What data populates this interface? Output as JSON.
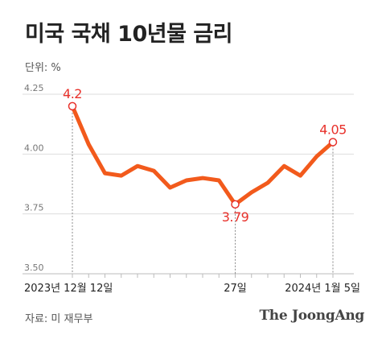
{
  "title": "미국 국채 10년물 금리",
  "unit_label": "단위: %",
  "source": "자료: 미 재무부",
  "brand": "The JoongAng",
  "colors": {
    "line": "#f25a1c",
    "highlight": "#e8312b",
    "grid": "#dddddd",
    "axis": "#bbbbbb"
  },
  "chart_data": {
    "type": "line",
    "x": [
      1,
      2,
      3,
      4,
      5,
      6,
      7,
      8,
      9,
      10,
      11,
      12,
      13,
      14,
      15,
      16,
      17
    ],
    "series": [
      {
        "values": [
          4.2,
          4.04,
          3.92,
          3.91,
          3.95,
          3.93,
          3.86,
          3.89,
          3.9,
          3.89,
          3.79,
          3.84,
          3.88,
          3.95,
          3.91,
          3.99,
          4.05
        ]
      }
    ],
    "ylim": [
      3.5,
      4.25
    ],
    "yticks": [
      "4.25",
      "4.00",
      "3.75",
      "3.50"
    ],
    "xtick_labels": [
      {
        "index": 1,
        "label": "2023년 12월 12일"
      },
      {
        "index": 11,
        "label": "27일"
      },
      {
        "index": 17,
        "label": "2024년 1월 5일"
      }
    ],
    "data_labels": [
      {
        "index": 1,
        "label": "4.2"
      },
      {
        "index": 11,
        "label": "3.79"
      },
      {
        "index": 17,
        "label": "4.05"
      }
    ],
    "grid": true
  }
}
